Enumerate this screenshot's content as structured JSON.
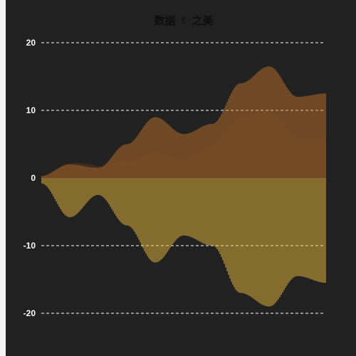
{
  "chart_data": {
    "type": "bar",
    "title": "数据 ✌ 之美",
    "ylim": [
      -20,
      20
    ],
    "yticks": [
      20,
      10,
      0,
      -10,
      -20
    ],
    "ytick_labels": [
      "20",
      "10",
      "0",
      "-10",
      "-20"
    ],
    "grid": true,
    "colors": {
      "positive": "#c8752a",
      "negative": "#e8b83c",
      "shadow": "#b05a1a"
    },
    "bar_count": 200,
    "series": [
      {
        "key": "positive",
        "curve_x": [
          0,
          10,
          20,
          30,
          40,
          50,
          60,
          70,
          80,
          90,
          100
        ],
        "curve_y": [
          0.3,
          2.0,
          1.5,
          5.0,
          9.0,
          6.5,
          8.0,
          14.0,
          16.5,
          12.0,
          12.5
        ]
      },
      {
        "key": "negative",
        "curve_x": [
          0,
          10,
          20,
          30,
          40,
          50,
          60,
          70,
          80,
          90,
          100
        ],
        "curve_y": [
          -0.8,
          -5.8,
          -2.5,
          -7.0,
          -12.5,
          -8.5,
          -10.0,
          -17.0,
          -19.0,
          -14.5,
          -15.5
        ]
      }
    ]
  }
}
